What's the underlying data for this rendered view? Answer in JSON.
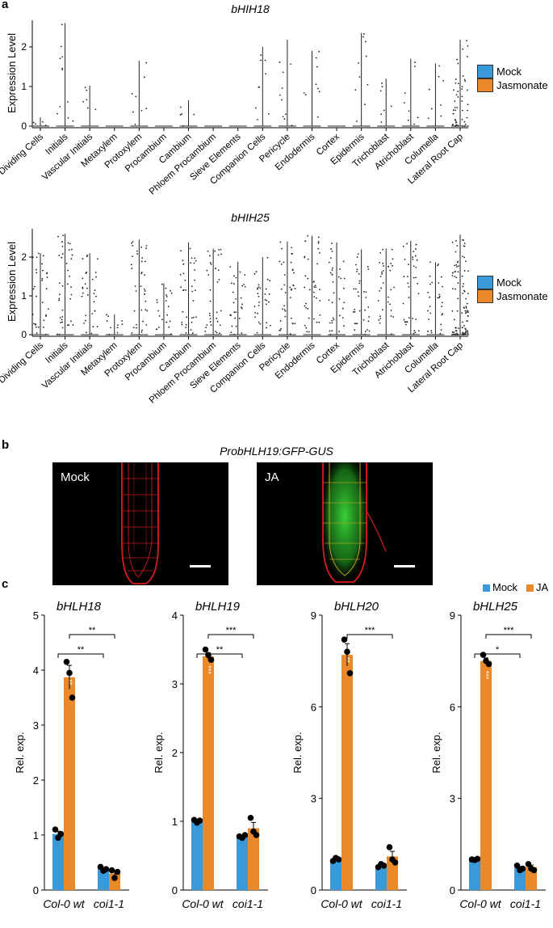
{
  "panels": {
    "a": "a",
    "b": "b",
    "c": "c"
  },
  "panel_a": {
    "ylabel": "Expression Level",
    "legend": [
      {
        "label": "Mock",
        "color": "#3a9ad9"
      },
      {
        "label": "Jasmonate",
        "color": "#e9892a"
      }
    ],
    "cell_types": [
      "Dividing Cells",
      "Initials",
      "Vascular Initials",
      "Metaxylem",
      "Protoxylem",
      "Procambium",
      "Cambium",
      "Phloem Procambium",
      "Sieve Elements",
      "Companion Cells",
      "Pericycle",
      "Endodermis",
      "Cortex",
      "Epidermis",
      "Trichoblast",
      "Atrichoblast",
      "Columella",
      "Lateral Root Cap"
    ]
  },
  "chart_data": [
    {
      "type": "violin",
      "title": "bHIH18",
      "ylabel": "Expression Level",
      "yticks": [
        0,
        1,
        2
      ],
      "ylim": [
        -0.1,
        2.7
      ],
      "categories": [
        "Dividing Cells",
        "Initials",
        "Vascular Initials",
        "Metaxylem",
        "Protoxylem",
        "Procambium",
        "Cambium",
        "Phloem Procambium",
        "Sieve Elements",
        "Companion Cells",
        "Pericycle",
        "Endodermis",
        "Cortex",
        "Epidermis",
        "Trichoblast",
        "Atrichoblast",
        "Columella",
        "Lateral Root Cap"
      ],
      "max_expression": [
        0.22,
        2.6,
        1.02,
        0,
        1.65,
        0,
        0.65,
        0,
        0,
        2.0,
        2.18,
        1.9,
        0,
        2.35,
        1.2,
        1.7,
        1.58,
        2.18
      ]
    },
    {
      "type": "violin",
      "title": "bHIH25",
      "ylabel": "Expression Level",
      "yticks": [
        0,
        1,
        2
      ],
      "ylim": [
        -0.1,
        2.7
      ],
      "categories": [
        "Dividing Cells",
        "Initials",
        "Vascular Initials",
        "Metaxylem",
        "Protoxylem",
        "Procambium",
        "Cambium",
        "Phloem Procambium",
        "Sieve Elements",
        "Companion Cells",
        "Pericycle",
        "Endodermis",
        "Cortex",
        "Epidermis",
        "Trichoblast",
        "Atrichoblast",
        "Columella",
        "Lateral Root Cap"
      ],
      "max_expression": [
        2.1,
        2.6,
        2.1,
        0.52,
        2.45,
        1.32,
        2.38,
        2.22,
        1.88,
        2.0,
        2.4,
        2.55,
        2.38,
        2.2,
        2.22,
        2.42,
        1.87,
        2.58
      ]
    },
    {
      "type": "bar",
      "title": "bHLH18",
      "ylabel": "Rel. exp.",
      "yticks": [
        0,
        1,
        2,
        3,
        4,
        5
      ],
      "ylim": [
        0,
        5
      ],
      "categories": [
        "Col-0 wt",
        "coi1-1"
      ],
      "series": [
        {
          "name": "Mock",
          "values": [
            1.02,
            0.38
          ],
          "points": [
            [
              1.1,
              0.95,
              1.02
            ],
            [
              0.42,
              0.35,
              0.38
            ]
          ]
        },
        {
          "name": "JA",
          "values": [
            3.87,
            0.3
          ],
          "points": [
            [
              4.15,
              3.95,
              3.5
            ],
            [
              0.36,
              0.22,
              0.33
            ]
          ]
        }
      ],
      "sig_brackets": [
        {
          "label": "**",
          "from": "Col-0 wt Mock",
          "to": "coi1-1 Mock"
        },
        {
          "label": "**",
          "from": "Col-0 wt JA",
          "to": "coi1-1 JA"
        }
      ],
      "bar_stars": [
        {
          "bar": "Col-0 wt JA",
          "label": "**"
        }
      ]
    },
    {
      "type": "bar",
      "title": "bHLH19",
      "ylabel": "Rel. exp.",
      "yticks": [
        0,
        1,
        2,
        3,
        4
      ],
      "ylim": [
        0,
        4
      ],
      "categories": [
        "Col-0 wt",
        "coi1-1"
      ],
      "series": [
        {
          "name": "Mock",
          "values": [
            1.0,
            0.78
          ],
          "points": [
            [
              1.02,
              0.98,
              1.01
            ],
            [
              0.78,
              0.76,
              0.8
            ]
          ]
        },
        {
          "name": "JA",
          "values": [
            3.4,
            0.9
          ],
          "points": [
            [
              3.5,
              3.42,
              3.35
            ],
            [
              1.05,
              0.85,
              0.8
            ]
          ]
        }
      ],
      "sig_brackets": [
        {
          "label": "**",
          "from": "Col-0 wt Mock",
          "to": "coi1-1 Mock"
        },
        {
          "label": "***",
          "from": "Col-0 wt JA",
          "to": "coi1-1 JA"
        }
      ],
      "bar_stars": [
        {
          "bar": "Col-0 wt JA",
          "label": "***"
        }
      ]
    },
    {
      "type": "bar",
      "title": "bHLH20",
      "ylabel": "Rel. exp.",
      "yticks": [
        0,
        3,
        6,
        9
      ],
      "ylim": [
        0,
        9
      ],
      "categories": [
        "Col-0 wt",
        "coi1-1"
      ],
      "series": [
        {
          "name": "Mock",
          "values": [
            1.0,
            0.8
          ],
          "points": [
            [
              0.95,
              1.05,
              1.0
            ],
            [
              0.75,
              0.85,
              0.8
            ]
          ]
        },
        {
          "name": "JA",
          "values": [
            7.7,
            1.1
          ],
          "points": [
            [
              8.2,
              7.8,
              7.1
            ],
            [
              1.4,
              1.0,
              0.9
            ]
          ]
        }
      ],
      "sig_brackets": [
        {
          "label": "***",
          "from": "Col-0 wt JA",
          "to": "coi1-1 JA"
        }
      ],
      "bar_stars": [
        {
          "bar": "Col-0 wt JA",
          "label": "**"
        }
      ]
    },
    {
      "type": "bar",
      "title": "bHLH25",
      "ylabel": "Rel. exp.",
      "yticks": [
        0,
        3,
        6,
        9
      ],
      "ylim": [
        0,
        9
      ],
      "categories": [
        "Col-0 wt",
        "coi1-1"
      ],
      "series": [
        {
          "name": "Mock",
          "values": [
            1.0,
            0.72
          ],
          "points": [
            [
              1.0,
              0.98,
              1.02
            ],
            [
              0.8,
              0.65,
              0.7
            ]
          ]
        },
        {
          "name": "JA",
          "values": [
            7.5,
            0.75
          ],
          "points": [
            [
              7.7,
              7.5,
              7.4
            ],
            [
              0.85,
              0.7,
              0.65
            ]
          ]
        }
      ],
      "sig_brackets": [
        {
          "label": "*",
          "from": "Col-0 wt Mock",
          "to": "coi1-1 Mock"
        },
        {
          "label": "***",
          "from": "Col-0 wt JA",
          "to": "coi1-1 JA"
        }
      ],
      "bar_stars": [
        {
          "bar": "Col-0 wt JA",
          "label": "***"
        }
      ]
    }
  ],
  "panel_b": {
    "title": "ProbHLH19:GFP-GUS",
    "images": [
      {
        "label": "Mock"
      },
      {
        "label": "JA"
      }
    ]
  },
  "panel_c": {
    "legend": [
      {
        "label": "Mock",
        "color": "#3a9ad9"
      },
      {
        "label": "JA",
        "color": "#e9892a"
      }
    ]
  }
}
